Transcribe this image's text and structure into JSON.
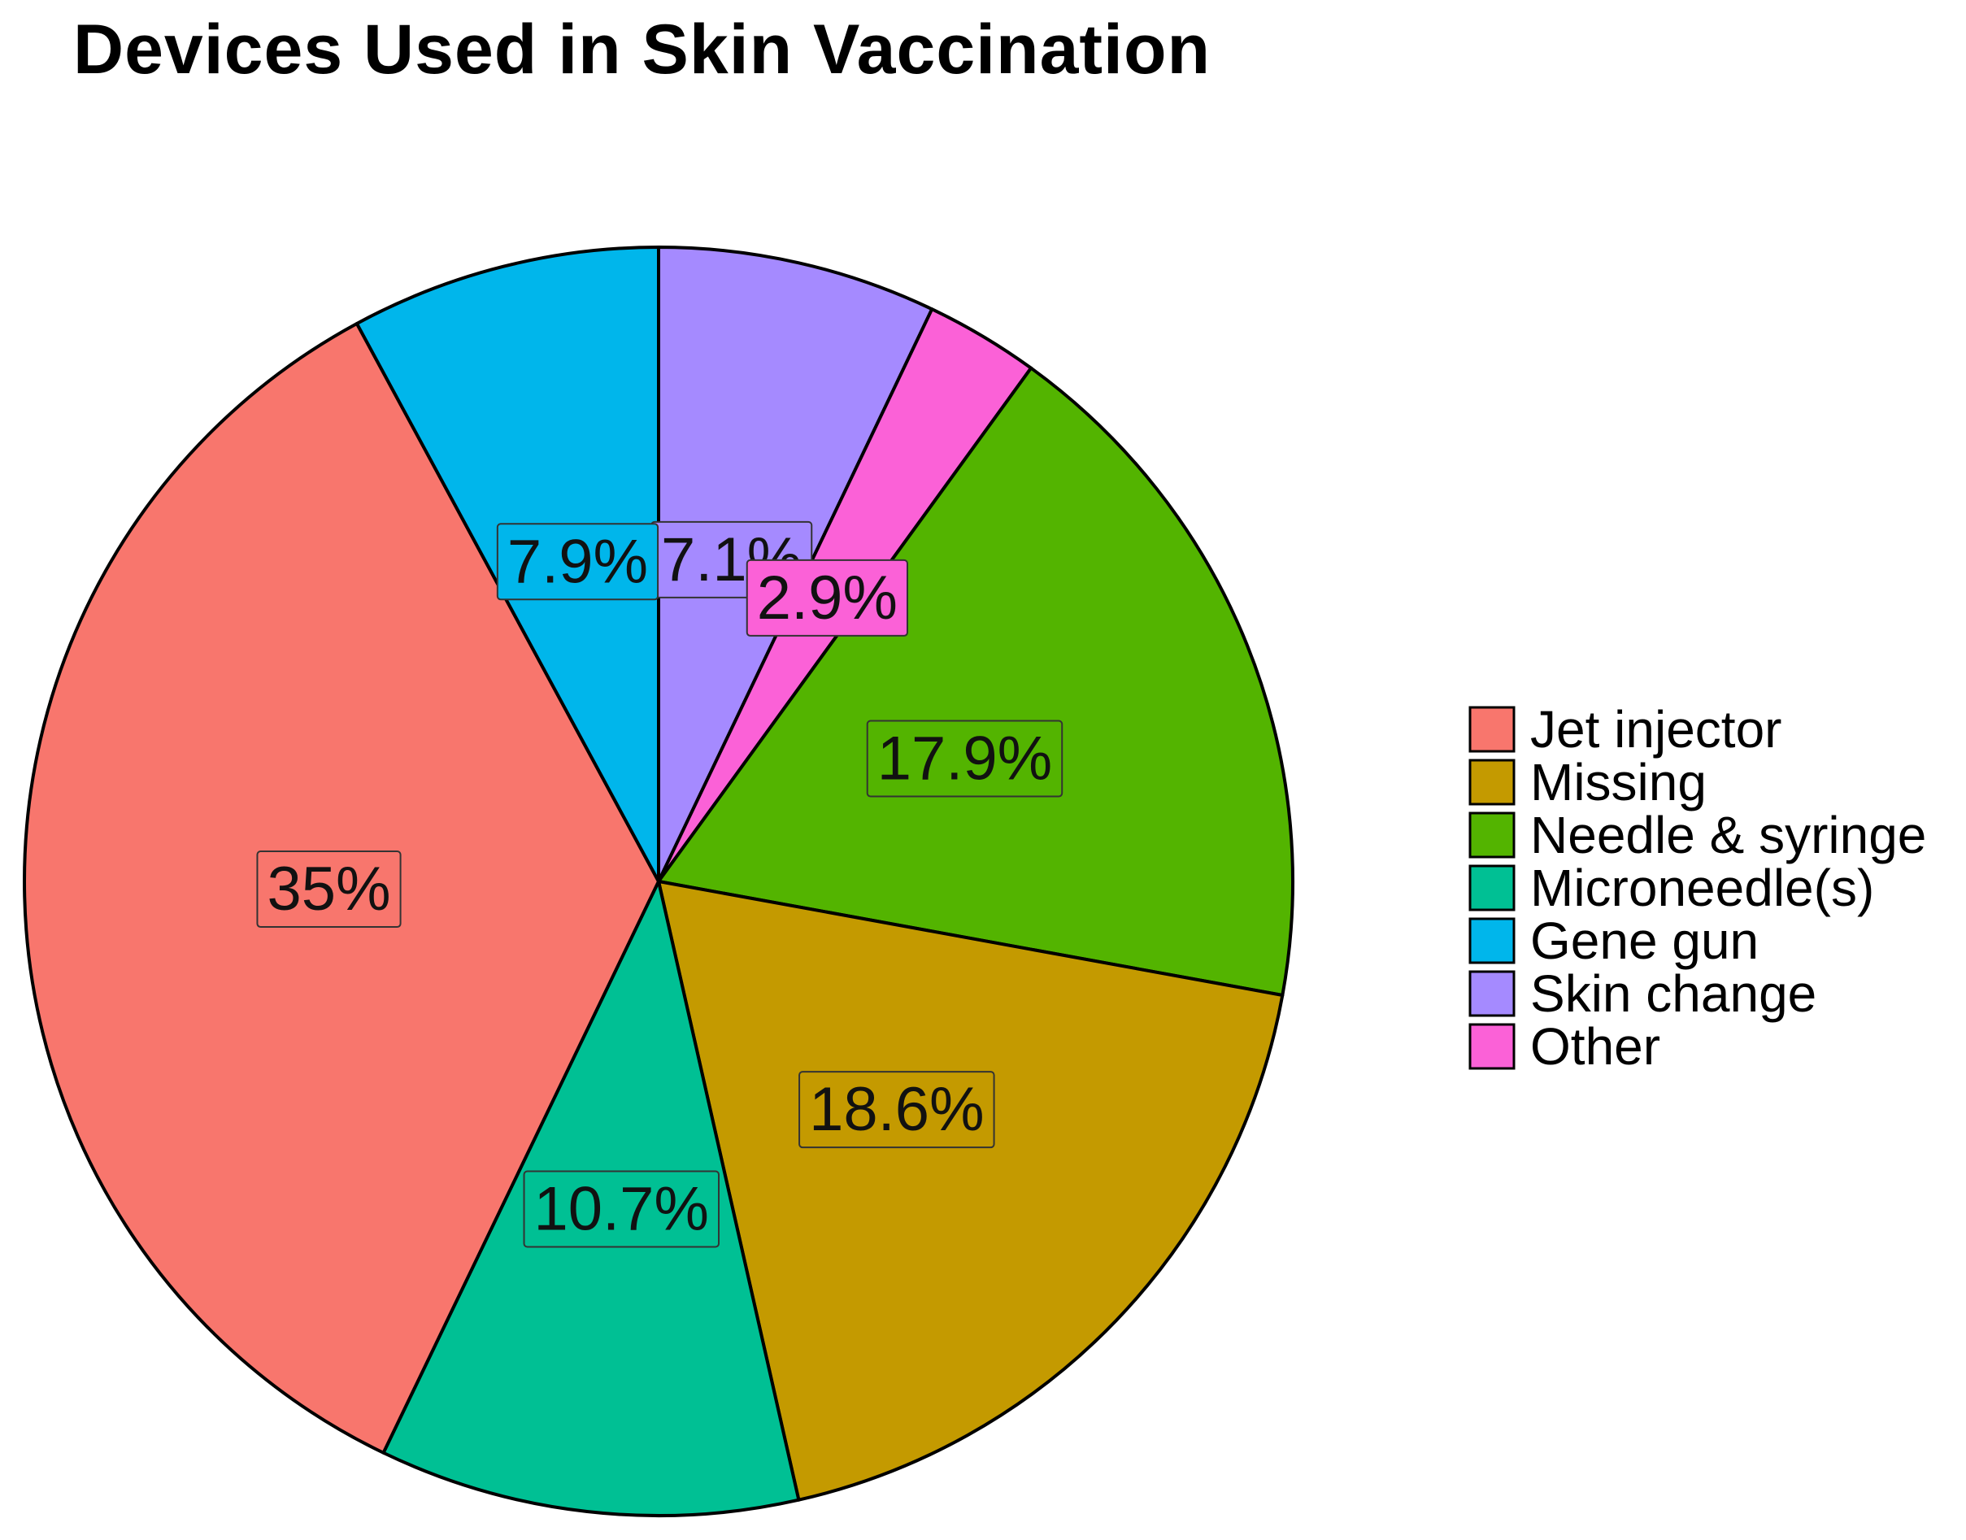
{
  "chart_data": {
    "type": "pie",
    "title": "Devices Used in Skin Vaccination",
    "legend_position": "right",
    "slices": [
      {
        "name": "Skin change",
        "value": 7.1,
        "label": "7.1%",
        "color": "#A58AFF"
      },
      {
        "name": "Other",
        "value": 2.9,
        "label": "2.9%",
        "color": "#FB61D7"
      },
      {
        "name": "Needle & syringe",
        "value": 17.9,
        "label": "17.9%",
        "color": "#53B400"
      },
      {
        "name": "Missing",
        "value": 18.6,
        "label": "18.6%",
        "color": "#C49A00"
      },
      {
        "name": "Microneedle(s)",
        "value": 10.7,
        "label": "10.7%",
        "color": "#00C094"
      },
      {
        "name": "Jet injector",
        "value": 35.0,
        "label": "35%",
        "color": "#F8766D"
      },
      {
        "name": "Gene gun",
        "value": 7.9,
        "label": "7.9%",
        "color": "#00B6EB"
      }
    ],
    "legend": [
      "Jet injector",
      "Missing",
      "Needle & syringe",
      "Microneedle(s)",
      "Gene gun",
      "Skin change",
      "Other"
    ]
  }
}
